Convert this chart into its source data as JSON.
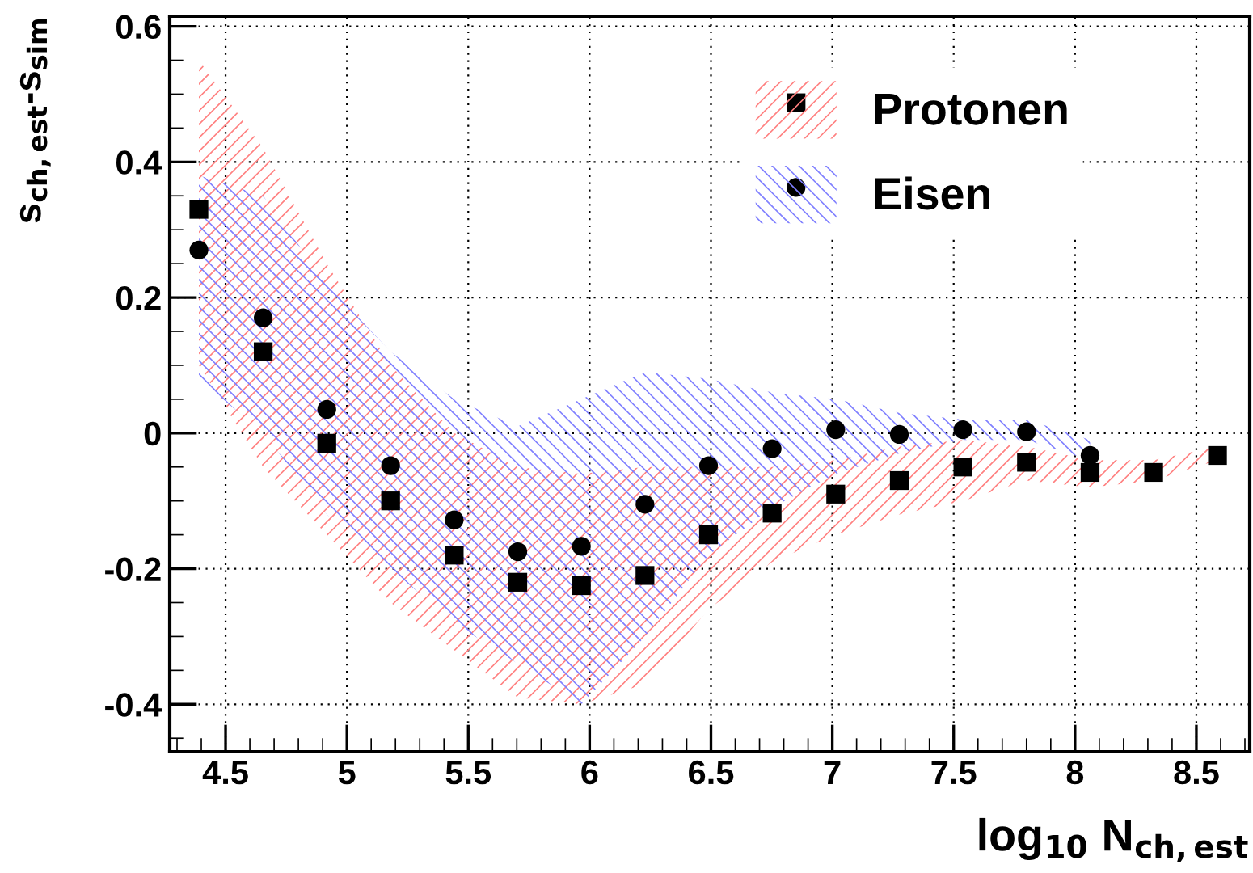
{
  "chart_data": {
    "type": "scatter",
    "xlabel": "log$_{10}$ N$_{ch,est}$",
    "ylabel": "s$_{ch,est}$-s$_{sim}$",
    "x": [
      4.39,
      4.655,
      4.917,
      5.18,
      5.442,
      5.704,
      5.966,
      6.228,
      6.49,
      6.752,
      7.014,
      7.276,
      7.538,
      7.8,
      8.062,
      8.324,
      8.587
    ],
    "series": [
      {
        "name": "Protonen",
        "color": "#000000",
        "marker": "square",
        "values": [
          0.33,
          0.12,
          -0.015,
          -0.1,
          -0.18,
          -0.22,
          -0.225,
          -0.21,
          -0.15,
          -0.118,
          -0.09,
          -0.07,
          -0.05,
          -0.043,
          -0.058,
          -0.058,
          -0.033
        ],
        "upper": [
          0.55,
          0.42,
          0.25,
          0.1,
          0.0,
          -0.05,
          -0.06,
          -0.05,
          -0.05,
          -0.05,
          -0.04,
          -0.02,
          -0.01,
          -0.02,
          -0.04,
          -0.04,
          -0.02
        ],
        "lower": [
          0.1,
          -0.05,
          -0.15,
          -0.25,
          -0.32,
          -0.39,
          -0.4,
          -0.37,
          -0.26,
          -0.19,
          -0.15,
          -0.12,
          -0.1,
          -0.07,
          -0.08,
          -0.07,
          -0.04
        ]
      },
      {
        "name": "Eisen",
        "color": "#000000",
        "marker": "circle",
        "values": [
          0.27,
          0.17,
          0.035,
          -0.048,
          -0.128,
          -0.175,
          -0.167,
          -0.105,
          -0.048,
          -0.023,
          0.005,
          -0.002,
          0.005,
          0.002,
          -0.033,
          null,
          null
        ],
        "upper": [
          0.38,
          0.35,
          0.22,
          0.12,
          0.05,
          0.01,
          0.05,
          0.09,
          0.08,
          0.06,
          0.05,
          0.03,
          0.02,
          0.02,
          -0.01,
          null,
          null
        ],
        "lower": [
          0.08,
          0.0,
          -0.12,
          -0.2,
          -0.28,
          -0.34,
          -0.4,
          -0.3,
          -0.18,
          -0.11,
          -0.06,
          -0.03,
          -0.01,
          -0.01,
          -0.04,
          null,
          null
        ]
      }
    ],
    "xlim": [
      4.27,
      8.72
    ],
    "ylim": [
      -0.47,
      0.615
    ],
    "xticks": [
      4.5,
      5,
      5.5,
      6,
      6.5,
      7,
      7.5,
      8,
      8.5
    ],
    "yticks": [
      -0.4,
      -0.2,
      0,
      0.2,
      0.4,
      0.6
    ],
    "grid": true,
    "legend": "top right"
  }
}
